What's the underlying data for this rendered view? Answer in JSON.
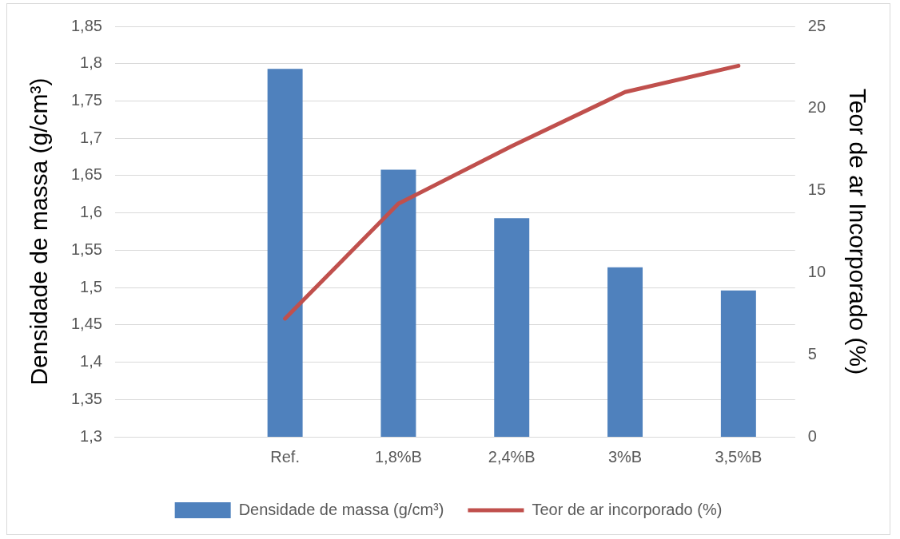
{
  "chart_data": {
    "type": "bar",
    "categories": [
      null,
      "Ref.",
      "1,8%B",
      "2,4%B",
      "3%B",
      "3,5%B"
    ],
    "ylabel": "Densidade de massa (g/cm³)",
    "y2label": "Teor de ar Incorporado (%)",
    "series": [
      {
        "name": "Densidade de massa (g/cm³)",
        "color": "#4f81bd",
        "values": [
          null,
          1.793,
          1.658,
          1.593,
          1.527,
          1.496
        ]
      },
      {
        "name": "Teor de ar incorporado (%)",
        "type": "line",
        "axis": "y2",
        "color": "#c0504d",
        "values": [
          null,
          7.2,
          14.2,
          17.7,
          21.0,
          22.6
        ]
      }
    ],
    "ylim": [
      1.3,
      1.85
    ],
    "yticks": [
      {
        "value": 1.3,
        "label": "1,3"
      },
      {
        "value": 1.35,
        "label": "1,35"
      },
      {
        "value": 1.4,
        "label": "1,4"
      },
      {
        "value": 1.45,
        "label": "1,45"
      },
      {
        "value": 1.5,
        "label": "1,5"
      },
      {
        "value": 1.55,
        "label": "1,55"
      },
      {
        "value": 1.6,
        "label": "1,6"
      },
      {
        "value": 1.65,
        "label": "1,65"
      },
      {
        "value": 1.7,
        "label": "1,7"
      },
      {
        "value": 1.75,
        "label": "1,75"
      },
      {
        "value": 1.8,
        "label": "1,8"
      },
      {
        "value": 1.85,
        "label": "1,85"
      }
    ],
    "y2lim": [
      0,
      25
    ],
    "y2ticks": [
      0,
      5,
      10,
      15,
      20,
      25
    ],
    "grid": "y",
    "legend": "bottom",
    "marker": "none",
    "line_style": "solid"
  }
}
